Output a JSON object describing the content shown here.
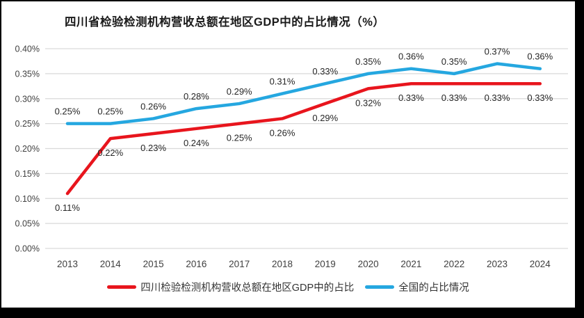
{
  "title": "四川省检验检测机构营收总额在地区GDP中的占比情况（%）",
  "chart_data": {
    "type": "line",
    "categories": [
      "2013",
      "2014",
      "2015",
      "2016",
      "2017",
      "2018",
      "2019",
      "2020",
      "2021",
      "2022",
      "2023",
      "2024"
    ],
    "series": [
      {
        "name": "四川检验检测机构营收总额在地区GDP中的占比",
        "color": "#e8151d",
        "values": [
          0.11,
          0.22,
          0.23,
          0.24,
          0.25,
          0.26,
          0.29,
          0.32,
          0.33,
          0.33,
          0.33,
          0.33
        ],
        "data_labels": [
          "0.11%",
          "0.22%",
          "0.23%",
          "0.24%",
          "0.25%",
          "0.26%",
          "0.29%",
          "0.32%",
          "0.33%",
          "0.33%",
          "0.33%",
          "0.33%"
        ],
        "label_position": "below"
      },
      {
        "name": "全国的占比情况",
        "color": "#25a7e0",
        "values": [
          0.25,
          0.25,
          0.26,
          0.28,
          0.29,
          0.31,
          0.33,
          0.35,
          0.36,
          0.35,
          0.37,
          0.36
        ],
        "data_labels": [
          "0.25%",
          "0.25%",
          "0.26%",
          "0.28%",
          "0.29%",
          "0.31%",
          "0.33%",
          "0.35%",
          "0.36%",
          "0.35%",
          "0.37%",
          "0.36%"
        ],
        "label_position": "above"
      }
    ],
    "title": "四川省检验检测机构营收总额在地区GDP中的占比情况（%）",
    "xlabel": "",
    "ylabel": "",
    "ylim": [
      0,
      0.4
    ],
    "yticks": [
      "0.00%",
      "0.05%",
      "0.10%",
      "0.15%",
      "0.20%",
      "0.25%",
      "0.30%",
      "0.35%",
      "0.40%"
    ],
    "grid": "horizontal",
    "legend_position": "bottom"
  },
  "colors": {
    "frame": "#000000",
    "background": "#ffffff",
    "gridline": "#d9d9d9",
    "axis_text": "#404040",
    "data_label_text": "#262626",
    "title_text": "#1a1a1a",
    "sichuan_line": "#e8151d",
    "national_line": "#25a7e0"
  }
}
